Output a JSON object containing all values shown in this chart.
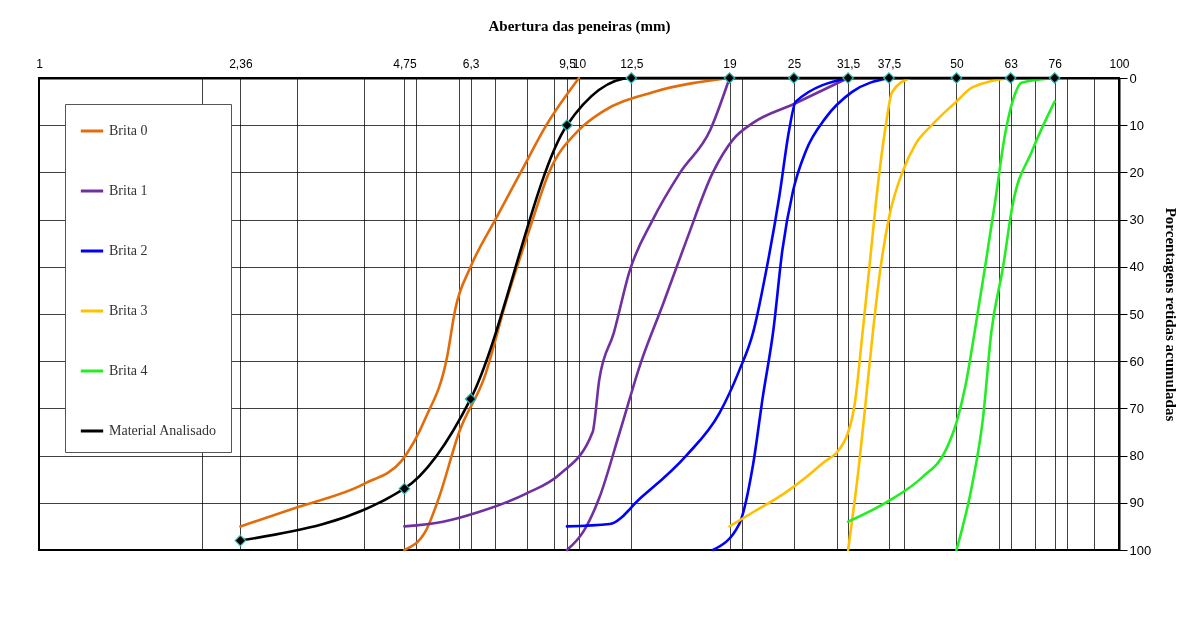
{
  "chart_data": {
    "type": "line",
    "xlabel": "Abertura das peneiras (mm)",
    "ylabel": "Porcentagens retidas acumuladas",
    "log": "x",
    "xlim": [
      1,
      100
    ],
    "ylim": [
      100,
      0
    ],
    "xticks": [
      1,
      {
        "value": 2,
        "label": null
      },
      {
        "value": 2.36,
        "label": "2,36"
      },
      {
        "value": 3,
        "label": null
      },
      {
        "value": 4,
        "label": null
      },
      {
        "value": 4.75,
        "label": "4,75"
      },
      {
        "value": 5,
        "label": null
      },
      {
        "value": 6,
        "label": null
      },
      {
        "value": 6.3,
        "label": "6,3"
      },
      {
        "value": 7,
        "label": null
      },
      {
        "value": 8,
        "label": null
      },
      {
        "value": 9,
        "label": null
      },
      {
        "value": 9.5,
        "label": "9,5"
      },
      10,
      {
        "value": 12.5,
        "label": "12,5"
      },
      19,
      {
        "value": 20,
        "label": null
      },
      25,
      {
        "value": 30,
        "label": null
      },
      {
        "value": 31.5,
        "label": "31,5"
      },
      {
        "value": 37.5,
        "label": "37,5"
      },
      {
        "value": 40,
        "label": null
      },
      50,
      {
        "value": 60,
        "label": null
      },
      63,
      {
        "value": 70,
        "label": null
      },
      76,
      {
        "value": 80,
        "label": null
      },
      {
        "value": 90,
        "label": null
      },
      100
    ],
    "yticks": [
      0,
      10,
      20,
      30,
      40,
      50,
      60,
      70,
      80,
      90,
      100
    ],
    "grid": true,
    "legend": "top left",
    "series": [
      {
        "name": "Brita 0",
        "color": "#e36c0a",
        "x": [
          10,
          8.7,
          7.8,
          7.0,
          6.3,
          5.9,
          5.7,
          5.2,
          4.7,
          4.0,
          3.0,
          2.36,
          null,
          19,
          13.7,
          11.1,
          10,
          8.8,
          8.1,
          7.3,
          6.7,
          6.0,
          5.5,
          5.2,
          4.75
        ],
        "values": [
          0,
          10,
          20,
          30,
          40,
          49,
          59,
          72,
          81,
          86,
          91,
          95,
          null,
          0,
          3,
          7,
          11,
          20,
          32,
          48,
          63,
          75,
          89,
          96,
          100
        ]
      },
      {
        "name": "Brita 1",
        "color": "#7030a0",
        "x": [
          19,
          17.5,
          15.4,
          13.7,
          12.4,
          11.6,
          10.9,
          10.6,
          9.2,
          8.0,
          6.5,
          5.6,
          4.75,
          null,
          31.5,
          25,
          21,
          19.3,
          17.7,
          15.8,
          14.3,
          13,
          11.9,
          10.9,
          10.2,
          9.5
        ],
        "values": [
          0,
          11,
          20,
          30,
          41,
          54,
          64,
          75,
          84,
          88,
          92,
          94,
          95,
          null,
          0,
          5.5,
          9.5,
          13,
          20,
          34.5,
          48,
          60.5,
          75,
          89,
          96,
          100
        ]
      },
      {
        "name": "Brita 2",
        "color": "#0000ff",
        "x": [
          31.5,
          25.2,
          24.5,
          23.5,
          22.2,
          21,
          19.8,
          18.2,
          15.8,
          13,
          11.4,
          9.5,
          null,
          37.5,
          32,
          28.6,
          26.3,
          24.9,
          23.8,
          22.9,
          21.9,
          21,
          19.8,
          17.7
        ],
        "values": [
          0,
          5,
          11,
          25,
          41,
          54,
          62,
          71,
          80,
          89,
          94.5,
          95,
          null,
          0,
          3,
          8.5,
          15.5,
          24,
          36.5,
          53.5,
          67.5,
          82,
          94.5,
          100
        ]
      },
      {
        "name": "Brita 3",
        "color": "#ffc000",
        "x": [
          41,
          38,
          37,
          35.5,
          34.5,
          33.5,
          32.5,
          31,
          28,
          24,
          21,
          19,
          null,
          63,
          53.5,
          50,
          45,
          42,
          39.7,
          37.6,
          36.2,
          35,
          34,
          33,
          31.5
        ],
        "values": [
          0,
          3,
          10,
          26,
          40,
          54,
          68,
          77,
          82,
          88,
          92,
          95,
          null,
          0,
          2,
          5,
          10,
          14,
          20,
          29,
          40,
          54,
          68,
          82,
          100
        ]
      },
      {
        "name": "Brita 4",
        "color": "#22ee22",
        "x": [
          76,
          66,
          63.5,
          61.5,
          59,
          56.5,
          54,
          52,
          50,
          47.7,
          43.3,
          37.6,
          31.5,
          null,
          76,
          69,
          63.5,
          61,
          58,
          56,
          53.5,
          50
        ],
        "values": [
          0,
          1,
          5,
          12,
          26,
          40,
          54,
          65,
          73,
          79,
          84.5,
          89.5,
          94,
          null,
          5,
          15.5,
          27,
          40,
          54,
          72,
          86,
          100
        ]
      },
      {
        "name": "Material Analisado",
        "color": "#000000",
        "marker": "diamond",
        "x": [
          2.36,
          4.75,
          6.3,
          9.5,
          12.5,
          19,
          25,
          31.5,
          37.5,
          50,
          63,
          76
        ],
        "values": [
          98,
          87,
          68,
          10,
          0,
          0,
          0,
          0,
          0,
          0,
          0,
          0
        ]
      }
    ]
  }
}
